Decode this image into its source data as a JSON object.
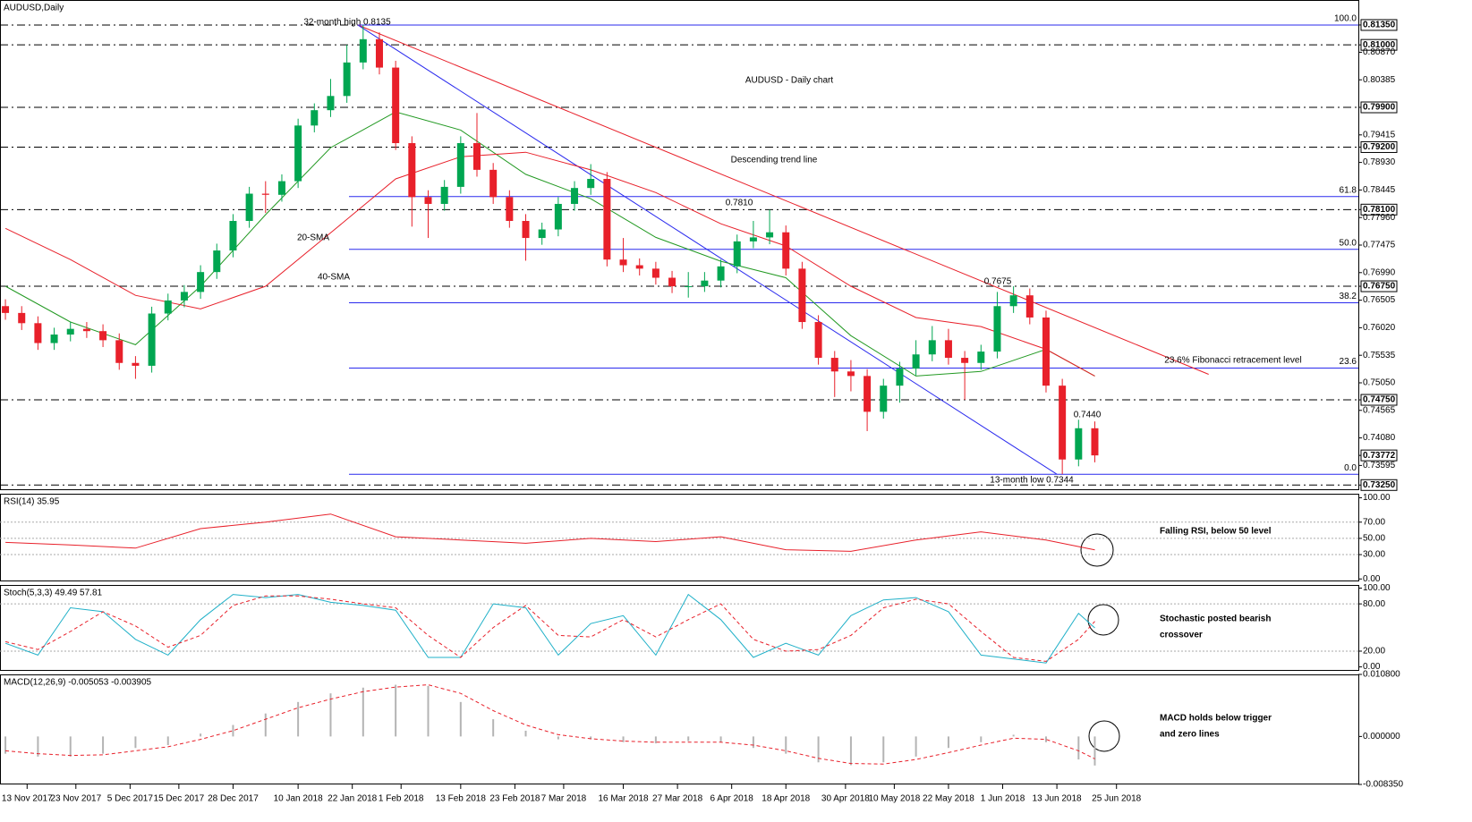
{
  "chart_data": [
    {
      "type": "candlestick",
      "title": "AUDUSD,Daily",
      "annotations": [
        "AUDUSD - Daily chart",
        "Descending trend line",
        "20-SMA",
        "40-SMA",
        "32-month high 0.8135",
        "0.7810",
        "0.7675",
        "0.7440",
        "13-month low 0.7344",
        "23.6% Fibonacci retracement level"
      ],
      "up_color": "#00a651",
      "down_color": "#e8202a",
      "x": [
        0,
        3,
        6,
        9,
        12,
        15,
        18,
        21,
        24,
        27,
        30,
        33,
        36,
        39,
        42,
        45,
        48,
        51,
        54,
        57,
        60,
        63,
        66,
        69,
        72,
        75,
        78,
        81,
        84,
        87,
        90,
        93,
        96,
        99,
        102,
        105,
        108,
        111,
        114,
        117,
        120,
        123,
        126,
        129,
        132,
        135,
        138,
        141,
        144,
        147,
        150,
        153,
        156,
        159,
        162,
        165,
        168,
        171,
        174,
        177,
        180,
        183,
        186,
        189,
        192,
        195,
        198,
        201
      ],
      "open": [
        0.764,
        0.7628,
        0.761,
        0.7575,
        0.759,
        0.76,
        0.7596,
        0.758,
        0.754,
        0.7535,
        0.7627,
        0.765,
        0.7665,
        0.77,
        0.7738,
        0.779,
        0.7838,
        0.7836,
        0.786,
        0.7958,
        0.7985,
        0.801,
        0.8069,
        0.811,
        0.806,
        0.7927,
        0.7832,
        0.782,
        0.785,
        0.7927,
        0.788,
        0.7832,
        0.779,
        0.776,
        0.7775,
        0.782,
        0.7848,
        0.7864,
        0.7722,
        0.7712,
        0.7706,
        0.769,
        0.7675,
        0.7675,
        0.7685,
        0.771,
        0.7754,
        0.7761,
        0.777,
        0.7706,
        0.7612,
        0.7549,
        0.7525,
        0.7517,
        0.7454,
        0.75,
        0.753,
        0.7555,
        0.758,
        0.7549,
        0.754,
        0.756,
        0.764,
        0.7659,
        0.762,
        0.75,
        0.737,
        0.7425
      ],
      "high": [
        0.7652,
        0.764,
        0.7622,
        0.7602,
        0.7612,
        0.7612,
        0.7608,
        0.7592,
        0.7552,
        0.7639,
        0.7662,
        0.7677,
        0.7712,
        0.775,
        0.7802,
        0.785,
        0.786,
        0.7872,
        0.797,
        0.7997,
        0.804,
        0.81,
        0.8135,
        0.8122,
        0.8072,
        0.7939,
        0.7844,
        0.7862,
        0.7939,
        0.798,
        0.7892,
        0.7844,
        0.7802,
        0.7787,
        0.7832,
        0.786,
        0.789,
        0.7876,
        0.776,
        0.7724,
        0.7718,
        0.7702,
        0.77,
        0.77,
        0.7722,
        0.7766,
        0.779,
        0.781,
        0.7782,
        0.7718,
        0.7624,
        0.7561,
        0.7545,
        0.7529,
        0.7512,
        0.7542,
        0.758,
        0.7605,
        0.76,
        0.7561,
        0.7572,
        0.7665,
        0.7675,
        0.7671,
        0.7632,
        0.7512,
        0.744,
        0.7437
      ],
      "low": [
        0.7616,
        0.7598,
        0.7563,
        0.7563,
        0.7578,
        0.7584,
        0.7568,
        0.7528,
        0.7512,
        0.7523,
        0.7615,
        0.7638,
        0.7653,
        0.7688,
        0.7726,
        0.7778,
        0.7804,
        0.7824,
        0.7848,
        0.7946,
        0.7973,
        0.7998,
        0.8057,
        0.8048,
        0.7915,
        0.778,
        0.776,
        0.7808,
        0.7838,
        0.7868,
        0.782,
        0.7778,
        0.772,
        0.7748,
        0.7763,
        0.7808,
        0.7836,
        0.771,
        0.77,
        0.7694,
        0.7678,
        0.7663,
        0.7655,
        0.7665,
        0.7673,
        0.7698,
        0.7742,
        0.7749,
        0.7694,
        0.76,
        0.7537,
        0.748,
        0.749,
        0.742,
        0.7442,
        0.747,
        0.7518,
        0.7543,
        0.7537,
        0.7475,
        0.7528,
        0.7548,
        0.7628,
        0.7608,
        0.7488,
        0.7344,
        0.7358,
        0.7365
      ],
      "close": [
        0.7628,
        0.761,
        0.7575,
        0.759,
        0.76,
        0.7596,
        0.758,
        0.754,
        0.7535,
        0.7627,
        0.765,
        0.7665,
        0.77,
        0.7738,
        0.779,
        0.7838,
        0.7836,
        0.786,
        0.7958,
        0.7985,
        0.801,
        0.8069,
        0.811,
        0.806,
        0.7927,
        0.7832,
        0.782,
        0.785,
        0.7927,
        0.788,
        0.7832,
        0.779,
        0.776,
        0.7775,
        0.782,
        0.7848,
        0.7864,
        0.7722,
        0.7712,
        0.7706,
        0.769,
        0.7675,
        0.7675,
        0.7685,
        0.771,
        0.7754,
        0.7761,
        0.777,
        0.7706,
        0.7612,
        0.7549,
        0.7525,
        0.7517,
        0.7454,
        0.75,
        0.753,
        0.7555,
        0.758,
        0.7549,
        0.754,
        0.756,
        0.764,
        0.7659,
        0.762,
        0.75,
        0.737,
        0.7425,
        0.73772
      ],
      "series": [
        {
          "color": "#229922",
          "x": [
            0,
            12,
            24,
            36,
            48,
            60,
            72,
            84,
            96,
            108,
            120,
            132,
            144,
            156,
            168,
            180,
            192,
            201
          ],
          "values": [
            0.7675,
            0.7612,
            0.7572,
            0.7675,
            0.7801,
            0.7919,
            0.7982,
            0.795,
            0.7872,
            0.7829,
            0.7761,
            0.7719,
            0.769,
            0.7588,
            0.7517,
            0.7525,
            0.7564,
            0.7517
          ]
        },
        {
          "color": "#e8202a",
          "x": [
            0,
            12,
            24,
            36,
            48,
            60,
            72,
            84,
            96,
            108,
            120,
            132,
            144,
            156,
            168,
            180,
            192,
            201
          ],
          "values": [
            0.7777,
            0.7722,
            0.7659,
            0.7635,
            0.7675,
            0.7769,
            0.7864,
            0.7903,
            0.7911,
            0.788,
            0.784,
            0.7785,
            0.7746,
            0.7675,
            0.762,
            0.7604,
            0.7564,
            0.7517
          ]
        }
      ],
      "trend_lines": [
        {
          "color": "#e8202a",
          "x": [
            65,
            222
          ],
          "values": [
            0.8135,
            0.752
          ]
        },
        {
          "color": "#2a2aee",
          "x": [
            65,
            194
          ],
          "values": [
            0.8135,
            0.7344
          ]
        }
      ],
      "fib_color": "#2a2aee",
      "fib_levels": [
        {
          "value": 0.8135,
          "label": "100.0"
        },
        {
          "value": 0.7833,
          "label": "61.8"
        },
        {
          "value": 0.774,
          "label": "50.0"
        },
        {
          "value": 0.7646,
          "label": "38.2"
        },
        {
          "value": 0.7531,
          "label": "23.6"
        },
        {
          "value": 0.7344,
          "label": "0.0"
        }
      ],
      "levels": [
        0.8135,
        0.81,
        0.799,
        0.792,
        0.781,
        0.7675,
        0.7475,
        0.7325
      ],
      "xlim": [
        -1,
        210
      ],
      "ylim": [
        0.7316,
        0.8179
      ],
      "yticks": [
        {
          "value": 0.8135,
          "label": "0.81350"
        },
        {
          "value": 0.81,
          "label": "0.81000"
        },
        {
          "value": 0.8087,
          "label": "0.80870"
        },
        {
          "value": 0.80385,
          "label": "0.80385"
        },
        {
          "value": 0.799,
          "label": "0.79900"
        },
        {
          "value": 0.79415,
          "label": "0.79415"
        },
        {
          "value": 0.792,
          "label": "0.79200"
        },
        {
          "value": 0.7893,
          "label": "0.78930"
        },
        {
          "value": 0.78445,
          "label": "0.78445"
        },
        {
          "value": 0.781,
          "label": "0.78100"
        },
        {
          "value": 0.7796,
          "label": "0.77960"
        },
        {
          "value": 0.77475,
          "label": "0.77475"
        },
        {
          "value": 0.7699,
          "label": "0.76990"
        },
        {
          "value": 0.7675,
          "label": "0.76750"
        },
        {
          "value": 0.76505,
          "label": "0.76505"
        },
        {
          "value": 0.7602,
          "label": "0.76020"
        },
        {
          "value": 0.75535,
          "label": "0.75535"
        },
        {
          "value": 0.7505,
          "label": "0.75050"
        },
        {
          "value": 0.7475,
          "label": "0.74750"
        },
        {
          "value": 0.74565,
          "label": "0.74565"
        },
        {
          "value": 0.7408,
          "label": "0.74080"
        },
        {
          "value": 0.73772,
          "label": "0.73772"
        },
        {
          "value": 0.73595,
          "label": "0.73595"
        },
        {
          "value": 0.7325,
          "label": "0.73250"
        }
      ]
    },
    {
      "type": "line",
      "title": "RSI(14) 35.95",
      "note": [
        "Falling RSI, below 50 level"
      ],
      "series": [
        {
          "color": "#e8202a",
          "style": "solid",
          "x": [
            0,
            12,
            24,
            36,
            48,
            60,
            72,
            84,
            96,
            108,
            120,
            132,
            144,
            156,
            168,
            180,
            192,
            201
          ],
          "values": [
            45,
            42,
            38,
            62,
            70,
            80,
            52,
            48,
            44,
            50,
            46,
            52,
            36,
            34,
            48,
            58,
            48,
            35.95
          ]
        }
      ],
      "levels": [
        70,
        50,
        30
      ],
      "xlim": [
        -1,
        210
      ],
      "ylim": [
        -3,
        105
      ],
      "yticks": [
        {
          "value": 100,
          "label": "100.00"
        },
        {
          "value": 70,
          "label": "70.00"
        },
        {
          "value": 50,
          "label": "50.00"
        },
        {
          "value": 30,
          "label": "30.00"
        },
        {
          "value": 0,
          "label": "0.00"
        }
      ]
    },
    {
      "type": "line",
      "title": "Stoch(5,3,3) 49.49 57.81",
      "note": [
        "Stochastic posted bearish",
        "crossover"
      ],
      "series": [
        {
          "color": "#1fb0c8",
          "style": "solid",
          "x": [
            0,
            6,
            12,
            18,
            24,
            30,
            36,
            42,
            48,
            54,
            60,
            66,
            72,
            78,
            84,
            90,
            96,
            102,
            108,
            114,
            120,
            126,
            132,
            138,
            144,
            150,
            156,
            162,
            168,
            174,
            180,
            186,
            192,
            198,
            201
          ],
          "values": [
            30,
            15,
            75,
            70,
            35,
            15,
            60,
            92,
            88,
            92,
            82,
            78,
            72,
            12,
            12,
            80,
            75,
            15,
            55,
            65,
            15,
            92,
            60,
            12,
            30,
            15,
            65,
            85,
            88,
            70,
            15,
            10,
            5,
            68,
            49.49
          ]
        },
        {
          "color": "#e8202a",
          "style": "dashed",
          "x": [
            0,
            6,
            12,
            18,
            24,
            30,
            36,
            42,
            48,
            54,
            60,
            66,
            72,
            78,
            84,
            90,
            96,
            102,
            108,
            114,
            120,
            126,
            132,
            138,
            144,
            150,
            156,
            162,
            168,
            174,
            180,
            186,
            192,
            198,
            201
          ],
          "values": [
            32,
            22,
            45,
            70,
            52,
            25,
            40,
            78,
            90,
            90,
            86,
            80,
            75,
            40,
            12,
            50,
            78,
            40,
            38,
            60,
            38,
            60,
            80,
            35,
            20,
            22,
            40,
            75,
            86,
            80,
            45,
            12,
            7,
            35,
            57.81
          ]
        }
      ],
      "levels": [
        80,
        20
      ],
      "xlim": [
        -1,
        210
      ],
      "ylim": [
        -5,
        104
      ],
      "yticks": [
        {
          "value": 100,
          "label": "100.00"
        },
        {
          "value": 80,
          "label": "80.00"
        },
        {
          "value": 20,
          "label": "20.00"
        },
        {
          "value": 0,
          "label": "0.00"
        }
      ]
    },
    {
      "type": "combo",
      "title": "MACD(12,26,9) -0.005053 -0.003905",
      "note": [
        "MACD holds below trigger",
        "and zero lines"
      ],
      "series": [
        {
          "kind": "bar",
          "color": "#b4b4b4",
          "x": [
            0,
            6,
            12,
            18,
            24,
            30,
            36,
            42,
            48,
            54,
            60,
            66,
            72,
            78,
            84,
            90,
            96,
            102,
            108,
            114,
            120,
            126,
            132,
            138,
            144,
            150,
            156,
            162,
            168,
            174,
            180,
            186,
            192,
            198,
            201
          ],
          "values": [
            -0.003,
            -0.0035,
            -0.0035,
            -0.003,
            -0.002,
            -0.0015,
            0.0005,
            0.002,
            0.004,
            0.006,
            0.0075,
            0.0085,
            0.009,
            0.0088,
            0.006,
            0.003,
            0.001,
            -0.0005,
            -0.0005,
            -0.001,
            -0.0012,
            -0.0008,
            -0.001,
            -0.002,
            -0.003,
            -0.0045,
            -0.005,
            -0.0045,
            -0.0035,
            -0.002,
            -0.001,
            0.0003,
            -0.001,
            -0.004,
            -0.005053
          ]
        },
        {
          "kind": "line",
          "style": "dashed",
          "color": "#e8202a",
          "x": [
            0,
            6,
            12,
            18,
            24,
            30,
            36,
            42,
            48,
            54,
            60,
            66,
            72,
            78,
            84,
            90,
            96,
            102,
            108,
            114,
            120,
            126,
            132,
            138,
            144,
            150,
            156,
            162,
            168,
            174,
            180,
            186,
            192,
            198,
            201
          ],
          "values": [
            -0.0025,
            -0.003,
            -0.0033,
            -0.0032,
            -0.0025,
            -0.0018,
            -0.0005,
            0.001,
            0.003,
            0.005,
            0.0065,
            0.0078,
            0.0086,
            0.009,
            0.0075,
            0.0045,
            0.002,
            0.0003,
            -0.0004,
            -0.0008,
            -0.001,
            -0.001,
            -0.001,
            -0.0015,
            -0.0025,
            -0.0038,
            -0.0047,
            -0.0048,
            -0.004,
            -0.0028,
            -0.0015,
            -0.0003,
            -0.0005,
            -0.0025,
            -0.003905
          ]
        }
      ],
      "xlim": [
        -1,
        210
      ],
      "ylim": [
        -0.00835,
        0.0108
      ],
      "yticks": [
        {
          "value": 0.0108,
          "label": "0.010800"
        },
        {
          "value": 0,
          "label": "0.000000"
        },
        {
          "value": -0.00835,
          "label": "-0.008350"
        }
      ],
      "xticks": [
        {
          "value": 4,
          "label": "13 Nov 2017"
        },
        {
          "value": 13,
          "label": "23 Nov 2017"
        },
        {
          "value": 23,
          "label": "5 Dec 2017"
        },
        {
          "value": 32,
          "label": "15 Dec 2017"
        },
        {
          "value": 42,
          "label": "28 Dec 2017"
        },
        {
          "value": 54,
          "label": "10 Jan 2018"
        },
        {
          "value": 64,
          "label": "22 Jan 2018"
        },
        {
          "value": 73,
          "label": "1 Feb 2018"
        },
        {
          "value": 84,
          "label": "13 Feb 2018"
        },
        {
          "value": 94,
          "label": "23 Feb 2018"
        },
        {
          "value": 103,
          "label": "7 Mar 2018"
        },
        {
          "value": 114,
          "label": "16 Mar 2018"
        },
        {
          "value": 124,
          "label": "27 Mar 2018"
        },
        {
          "value": 134,
          "label": "6 Apr 2018"
        },
        {
          "value": 144,
          "label": "18 Apr 2018"
        },
        {
          "value": 155,
          "label": "30 Apr 2018"
        },
        {
          "value": 164,
          "label": "10 May 2018"
        },
        {
          "value": 174,
          "label": "22 May 2018"
        },
        {
          "value": 184,
          "label": "1 Jun 2018"
        },
        {
          "value": 194,
          "label": "13 Jun 2018"
        },
        {
          "value": 205,
          "label": "25 Jun 2018"
        }
      ]
    }
  ]
}
